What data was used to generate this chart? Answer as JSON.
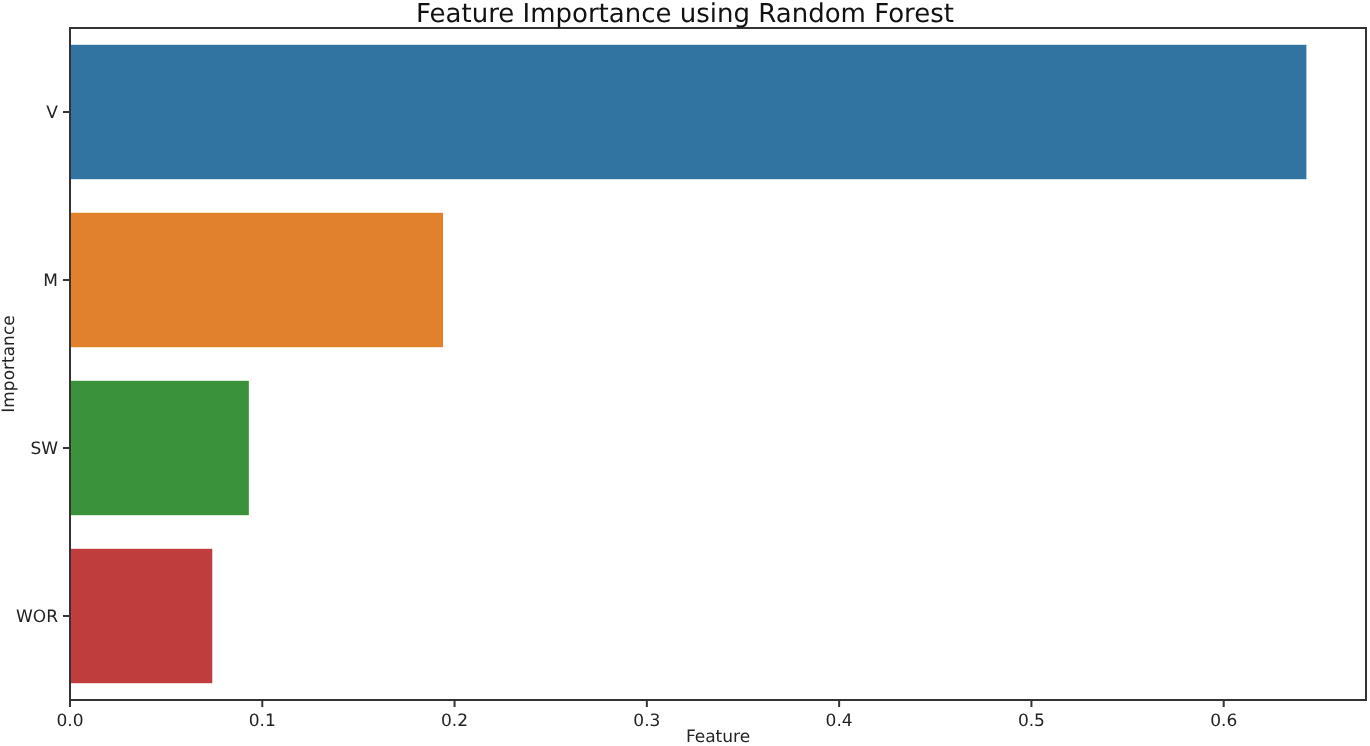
{
  "chart_data": {
    "type": "bar",
    "orientation": "horizontal",
    "title": "Feature Importance using Random Forest",
    "xlabel": "Feature",
    "ylabel": "Importance",
    "categories": [
      "V",
      "M",
      "SW",
      "WOR"
    ],
    "values": [
      0.643,
      0.194,
      0.093,
      0.074
    ],
    "colors": [
      "#3274a1",
      "#e1812c",
      "#3a923a",
      "#c03d3e"
    ],
    "xlim": [
      0,
      0.674
    ],
    "xticks": [
      {
        "value": 0,
        "label": "0.0"
      },
      0.1,
      0.2,
      0.3,
      0.4,
      0.5,
      0.6
    ],
    "grid": false
  }
}
